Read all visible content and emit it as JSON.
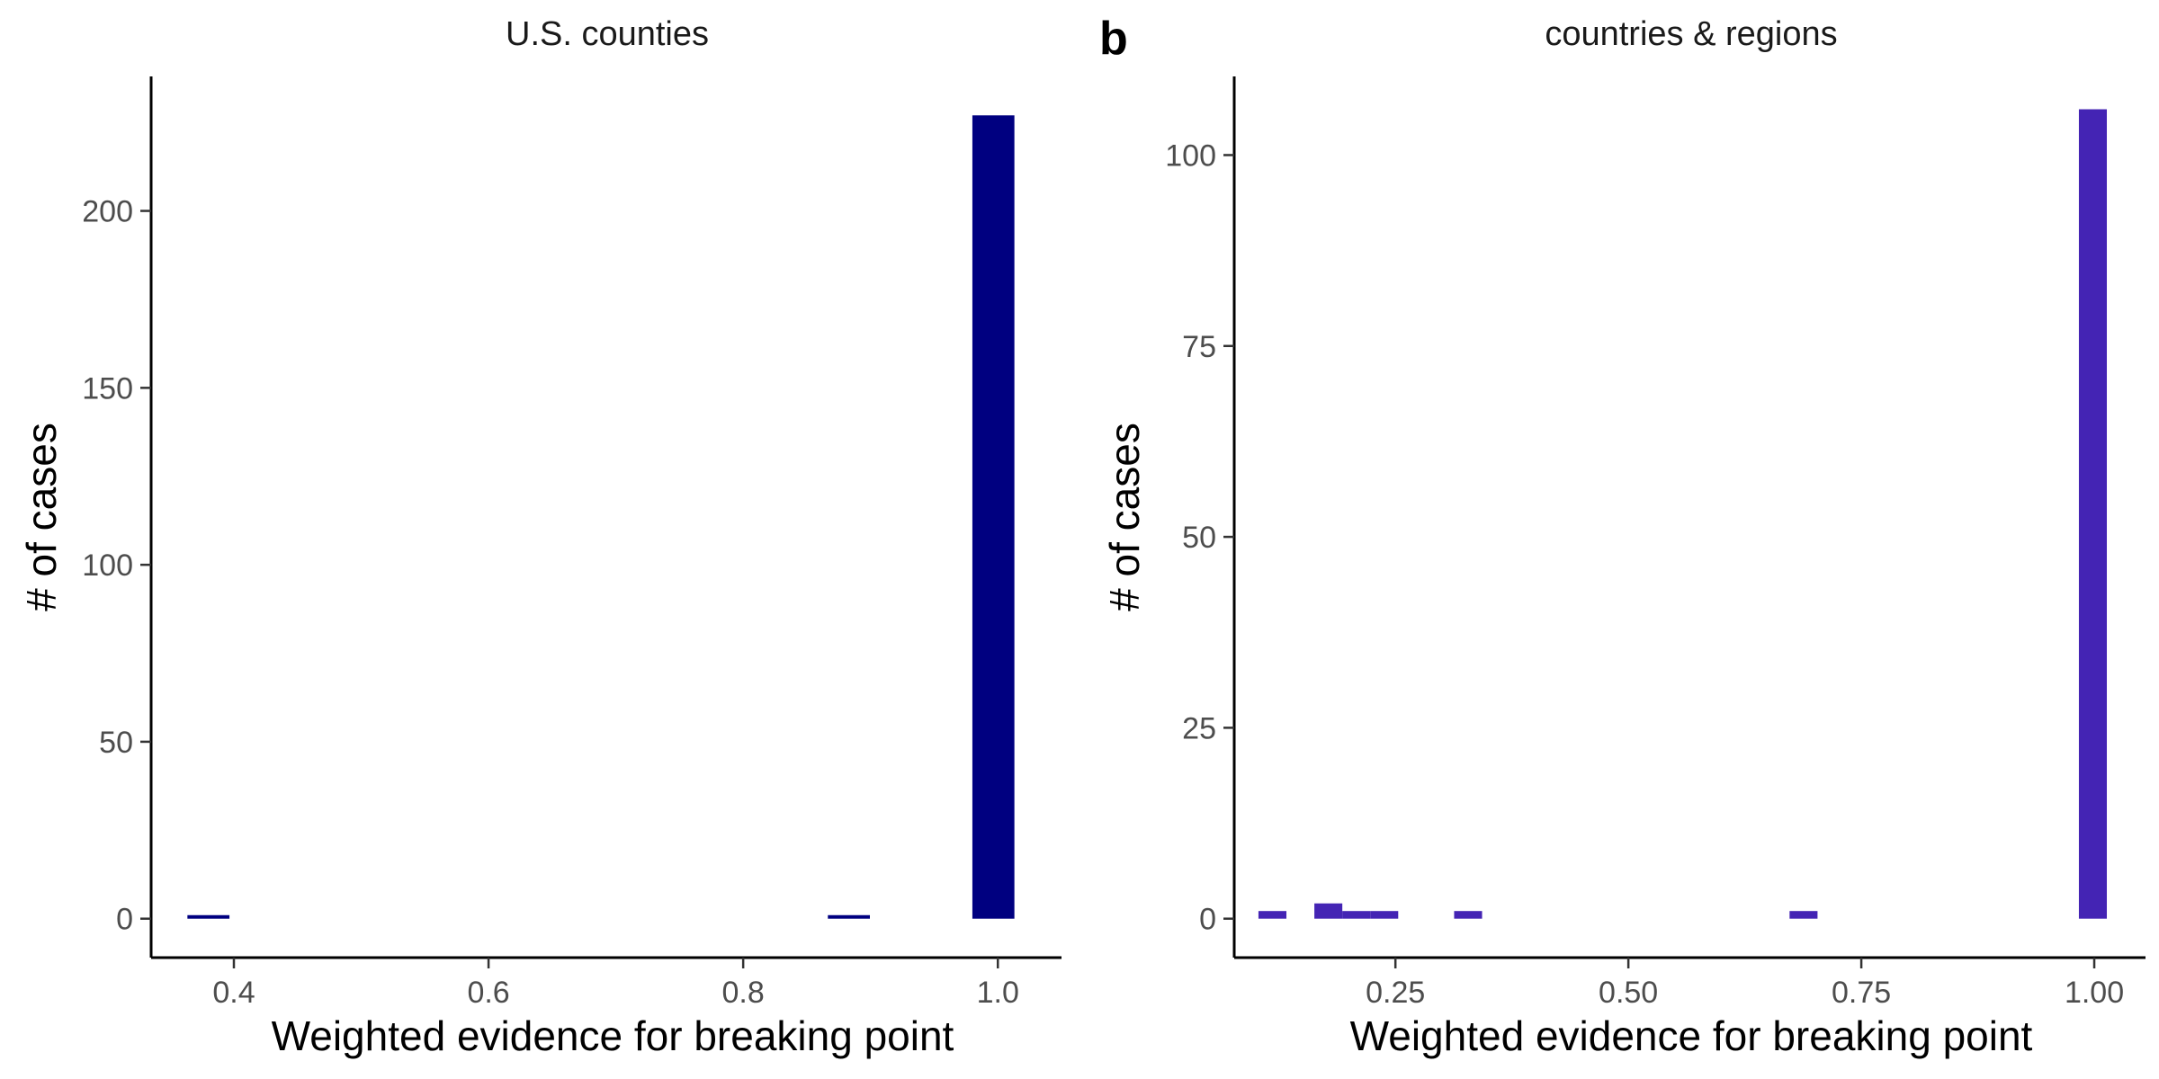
{
  "chart_data": [
    {
      "type": "bar",
      "panel_tag": "",
      "title": "U.S. counties",
      "xlabel": "Weighted evidence for breaking point",
      "ylabel": "# of cases",
      "xlim": [
        0.335,
        1.05
      ],
      "ylim": [
        -11,
        238
      ],
      "xticks": [
        0.4,
        0.6,
        0.8,
        1.0
      ],
      "xtick_labels": [
        "0.4",
        "0.6",
        "0.8",
        "1.0"
      ],
      "yticks": [
        0,
        50,
        100,
        150,
        200
      ],
      "ytick_labels": [
        "0",
        "50",
        "100",
        "150",
        "200"
      ],
      "bin_width": 0.033,
      "color": "#000080",
      "bins": [
        {
          "x": 0.38,
          "count": 1
        },
        {
          "x": 0.883,
          "count": 1
        },
        {
          "x": 0.9965,
          "count": 227
        }
      ],
      "grid": false
    },
    {
      "type": "bar",
      "panel_tag": "b",
      "title": "countries & regions",
      "xlabel": "Weighted evidence for breaking point",
      "ylabel": "# of cases",
      "xlim": [
        0.077,
        1.055
      ],
      "ylim": [
        -5.1,
        110.3
      ],
      "xticks": [
        0.25,
        0.5,
        0.75,
        1.0
      ],
      "xtick_labels": [
        "0.25",
        "0.50",
        "0.75",
        "1.00"
      ],
      "yticks": [
        0,
        25,
        50,
        75,
        100
      ],
      "ytick_labels": [
        "0",
        "25",
        "50",
        "75",
        "100"
      ],
      "bin_width": 0.03,
      "color": "#4424b4",
      "bins": [
        {
          "x": 0.118,
          "count": 1
        },
        {
          "x": 0.178,
          "count": 2
        },
        {
          "x": 0.208,
          "count": 1
        },
        {
          "x": 0.238,
          "count": 1
        },
        {
          "x": 0.328,
          "count": 1
        },
        {
          "x": 0.688,
          "count": 1
        },
        {
          "x": 0.9985,
          "count": 106
        }
      ],
      "grid": false
    }
  ]
}
